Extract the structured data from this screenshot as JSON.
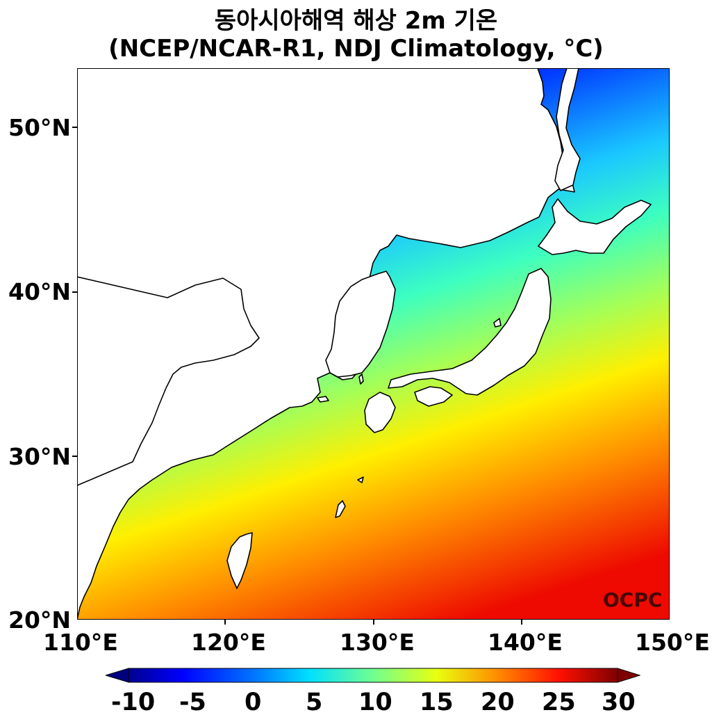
{
  "title": {
    "line1": "동아시아해역 해상 2m 기온",
    "line2": "(NCEP/NCAR-R1, NDJ Climatology, °C)"
  },
  "axes": {
    "lat_labels": [
      "50°N",
      "40°N",
      "30°N",
      "20°N"
    ],
    "lon_labels": [
      "110°E",
      "120°E",
      "130°E",
      "140°E",
      "150°E"
    ],
    "lat_range": [
      20,
      53.5
    ],
    "lon_range": [
      110,
      150
    ]
  },
  "credit": "OCPC",
  "colorbar": {
    "labels": [
      "-10",
      "-5",
      "0",
      "5",
      "10",
      "15",
      "20",
      "25",
      "30"
    ],
    "min": -10,
    "max": 30,
    "colormap": "jet",
    "extend": "both"
  },
  "colors": {
    "land": "#ffffff",
    "coastline": "#000000"
  }
}
